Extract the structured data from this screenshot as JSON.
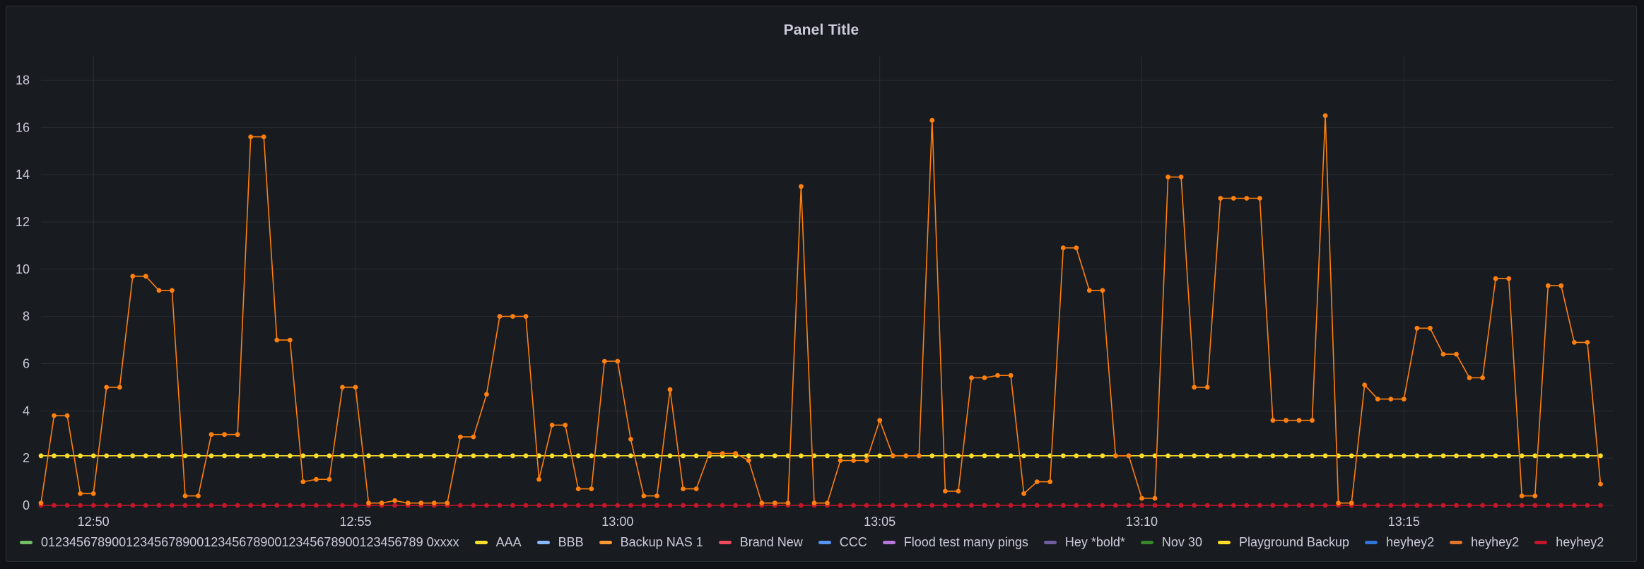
{
  "panel": {
    "title": "Panel Title"
  },
  "chart_data": {
    "type": "line",
    "title": "Panel Title",
    "xlabel": "",
    "ylabel": "",
    "ylim": [
      0,
      19
    ],
    "yticks": [
      0,
      2,
      4,
      6,
      8,
      10,
      12,
      14,
      16,
      18
    ],
    "xlim": [
      "12:49:00",
      "13:19:00"
    ],
    "xticks": [
      "12:50",
      "12:55",
      "13:00",
      "13:05",
      "13:10",
      "13:15"
    ],
    "grid": true,
    "legend_placement": "bottom-left",
    "series": [
      {
        "name": "Backup NAS 1",
        "color": "#ff7f0f",
        "points": [
          [
            "12:49:00",
            0.1
          ],
          [
            "12:49:15",
            3.8
          ],
          [
            "12:49:30",
            3.8
          ],
          [
            "12:49:45",
            0.5
          ],
          [
            "12:50:00",
            0.5
          ],
          [
            "12:50:15",
            5.0
          ],
          [
            "12:50:30",
            5.0
          ],
          [
            "12:50:45",
            9.7
          ],
          [
            "12:51:00",
            9.7
          ],
          [
            "12:51:15",
            9.1
          ],
          [
            "12:51:30",
            9.1
          ],
          [
            "12:51:45",
            0.4
          ],
          [
            "12:52:00",
            0.4
          ],
          [
            "12:52:15",
            3.0
          ],
          [
            "12:52:30",
            3.0
          ],
          [
            "12:52:45",
            3.0
          ],
          [
            "12:53:00",
            15.6
          ],
          [
            "12:53:15",
            15.6
          ],
          [
            "12:53:30",
            7.0
          ],
          [
            "12:53:45",
            7.0
          ],
          [
            "12:54:00",
            1.0
          ],
          [
            "12:54:15",
            1.1
          ],
          [
            "12:54:30",
            1.1
          ],
          [
            "12:54:45",
            5.0
          ],
          [
            "12:55:00",
            5.0
          ],
          [
            "12:55:15",
            0.1
          ],
          [
            "12:55:30",
            0.1
          ],
          [
            "12:55:45",
            0.2
          ],
          [
            "12:56:00",
            0.1
          ],
          [
            "12:56:15",
            0.1
          ],
          [
            "12:56:30",
            0.1
          ],
          [
            "12:56:45",
            0.1
          ],
          [
            "12:57:00",
            2.9
          ],
          [
            "12:57:15",
            2.9
          ],
          [
            "12:57:30",
            4.7
          ],
          [
            "12:57:45",
            8.0
          ],
          [
            "12:58:00",
            8.0
          ],
          [
            "12:58:15",
            8.0
          ],
          [
            "12:58:30",
            1.1
          ],
          [
            "12:58:45",
            3.4
          ],
          [
            "12:59:00",
            3.4
          ],
          [
            "12:59:15",
            0.7
          ],
          [
            "12:59:30",
            0.7
          ],
          [
            "12:59:45",
            6.1
          ],
          [
            "13:00:00",
            6.1
          ],
          [
            "13:00:15",
            2.8
          ],
          [
            "13:00:30",
            0.4
          ],
          [
            "13:00:45",
            0.4
          ],
          [
            "13:01:00",
            4.9
          ],
          [
            "13:01:15",
            0.7
          ],
          [
            "13:01:30",
            0.7
          ],
          [
            "13:01:45",
            2.2
          ],
          [
            "13:02:00",
            2.2
          ],
          [
            "13:02:15",
            2.2
          ],
          [
            "13:02:30",
            1.9
          ],
          [
            "13:02:45",
            0.1
          ],
          [
            "13:03:00",
            0.1
          ],
          [
            "13:03:15",
            0.1
          ],
          [
            "13:03:30",
            13.5
          ],
          [
            "13:03:45",
            0.1
          ],
          [
            "13:04:00",
            0.1
          ],
          [
            "13:04:15",
            1.9
          ],
          [
            "13:04:30",
            1.9
          ],
          [
            "13:04:45",
            1.9
          ],
          [
            "13:05:00",
            3.6
          ],
          [
            "13:05:15",
            2.1
          ],
          [
            "13:05:30",
            2.1
          ],
          [
            "13:05:45",
            2.1
          ],
          [
            "13:06:00",
            16.3
          ],
          [
            "13:06:15",
            0.6
          ],
          [
            "13:06:30",
            0.6
          ],
          [
            "13:06:45",
            5.4
          ],
          [
            "13:07:00",
            5.4
          ],
          [
            "13:07:15",
            5.5
          ],
          [
            "13:07:30",
            5.5
          ],
          [
            "13:07:45",
            0.5
          ],
          [
            "13:08:00",
            1.0
          ],
          [
            "13:08:15",
            1.0
          ],
          [
            "13:08:30",
            10.9
          ],
          [
            "13:08:45",
            10.9
          ],
          [
            "13:09:00",
            9.1
          ],
          [
            "13:09:15",
            9.1
          ],
          [
            "13:09:30",
            2.1
          ],
          [
            "13:09:45",
            2.1
          ],
          [
            "13:10:00",
            0.3
          ],
          [
            "13:10:15",
            0.3
          ],
          [
            "13:10:30",
            13.9
          ],
          [
            "13:10:45",
            13.9
          ],
          [
            "13:11:00",
            5.0
          ],
          [
            "13:11:15",
            5.0
          ],
          [
            "13:11:30",
            13.0
          ],
          [
            "13:11:45",
            13.0
          ],
          [
            "13:12:00",
            13.0
          ],
          [
            "13:12:15",
            13.0
          ],
          [
            "13:12:30",
            3.6
          ],
          [
            "13:12:45",
            3.6
          ],
          [
            "13:13:00",
            3.6
          ],
          [
            "13:13:15",
            3.6
          ],
          [
            "13:13:30",
            16.5
          ],
          [
            "13:13:45",
            0.1
          ],
          [
            "13:14:00",
            0.1
          ],
          [
            "13:14:15",
            5.1
          ],
          [
            "13:14:30",
            4.5
          ],
          [
            "13:14:45",
            4.5
          ],
          [
            "13:15:00",
            4.5
          ],
          [
            "13:15:15",
            7.5
          ],
          [
            "13:15:30",
            7.5
          ],
          [
            "13:15:45",
            6.4
          ],
          [
            "13:16:00",
            6.4
          ],
          [
            "13:16:15",
            5.4
          ],
          [
            "13:16:30",
            5.4
          ],
          [
            "13:16:45",
            9.6
          ],
          [
            "13:17:00",
            9.6
          ],
          [
            "13:17:15",
            0.4
          ],
          [
            "13:17:30",
            0.4
          ],
          [
            "13:17:45",
            9.3
          ],
          [
            "13:18:00",
            9.3
          ],
          [
            "13:18:15",
            6.9
          ],
          [
            "13:18:30",
            6.9
          ],
          [
            "13:18:45",
            0.9
          ]
        ]
      },
      {
        "name": "Playground Backup",
        "color": "#fade2a",
        "constant": 2.1
      },
      {
        "name": "heyhey2",
        "color": "#c4162a",
        "constant": 0
      }
    ],
    "legend": [
      {
        "name": "012345678900123456789001234567890012345678900123456789 0xxxx",
        "color": "#73bf69"
      },
      {
        "name": "AAA",
        "color": "#fade2a"
      },
      {
        "name": "BBB",
        "color": "#8ab8ff"
      },
      {
        "name": "Backup NAS 1",
        "color": "#ff9830"
      },
      {
        "name": "Brand New",
        "color": "#f2495c"
      },
      {
        "name": "CCC",
        "color": "#5794f2"
      },
      {
        "name": "Flood test many pings",
        "color": "#b877d9"
      },
      {
        "name": "Hey *bold*",
        "color": "#705da0"
      },
      {
        "name": "Nov 30",
        "color": "#37872d"
      },
      {
        "name": "Playground Backup",
        "color": "#fade2a"
      },
      {
        "name": "heyhey2",
        "color": "#3274d9"
      },
      {
        "name": "heyhey2",
        "color": "#e0752d"
      },
      {
        "name": "heyhey2",
        "color": "#c4162a"
      }
    ]
  }
}
